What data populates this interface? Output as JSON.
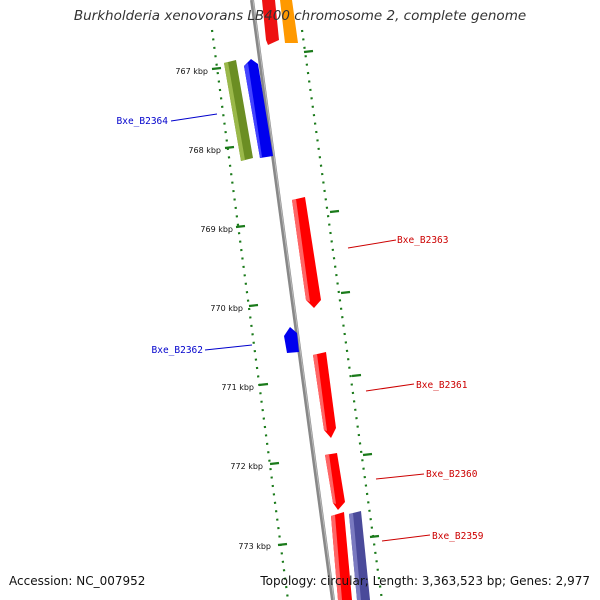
{
  "title": "Burkholderia xenovorans LB400 chromosome 2, complete genome",
  "footer": {
    "accession": "Accession: NC_007952",
    "topology": "Topology: circular; Length: 3,363,523 bp; Genes: 2,977"
  },
  "ticks": [
    "767 kbp",
    "768 kbp",
    "769 kbp",
    "770 kbp",
    "771 kbp",
    "772 kbp",
    "773 kbp"
  ],
  "genes": [
    {
      "name": "Bxe_B2364",
      "strand": "forward",
      "color": "#0000cc"
    },
    {
      "name": "Bxe_B2363",
      "strand": "reverse",
      "color": "#cc0000"
    },
    {
      "name": "Bxe_B2362",
      "strand": "forward",
      "color": "#0000cc"
    },
    {
      "name": "Bxe_B2361",
      "strand": "reverse",
      "color": "#cc0000"
    },
    {
      "name": "Bxe_B2360",
      "strand": "reverse",
      "color": "#cc0000"
    },
    {
      "name": "Bxe_B2359",
      "strand": "reverse",
      "color": "#cc0000"
    }
  ],
  "colors": {
    "backbone": "#888888",
    "forward_gene": "#0000ff",
    "reverse_gene": "#ff0000",
    "olive_feature": "#6b8e23",
    "orange_feature": "#ff9900",
    "purple_feature": "#4a4a9a",
    "tick_marks": "#1a7a1a"
  }
}
